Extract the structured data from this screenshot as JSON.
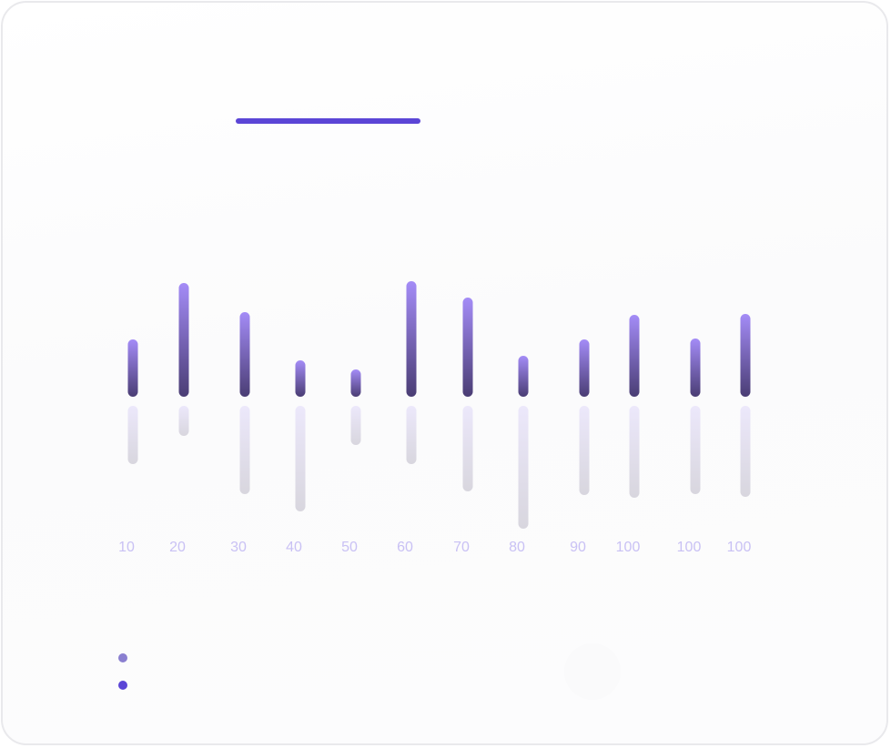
{
  "colors": {
    "accent": "#5b45d6",
    "bar_top_gradient": [
      "#a48cf7",
      "#4a3d74"
    ],
    "bar_bottom_gradient": [
      "#ece8fb",
      "#d8d6de"
    ],
    "tick_label": "#c9c1f4",
    "legend_dot_1": "#8a7fd0",
    "legend_dot_2": "#5b45d6"
  },
  "chart_data": {
    "type": "bar",
    "categories": [
      "10",
      "20",
      "30",
      "40",
      "50",
      "60",
      "70",
      "80",
      "90",
      "100",
      "100",
      "100"
    ],
    "series": [
      {
        "values": [
          63,
          125,
          93,
          40,
          30,
          127,
          109,
          45,
          63,
          90,
          64,
          91
        ]
      },
      {
        "values": [
          64,
          33,
          97,
          116,
          43,
          64,
          94,
          135,
          98,
          101,
          97,
          100
        ]
      }
    ],
    "xlabel": "",
    "ylabel": "",
    "grid": false,
    "legend": "bottom-left"
  }
}
